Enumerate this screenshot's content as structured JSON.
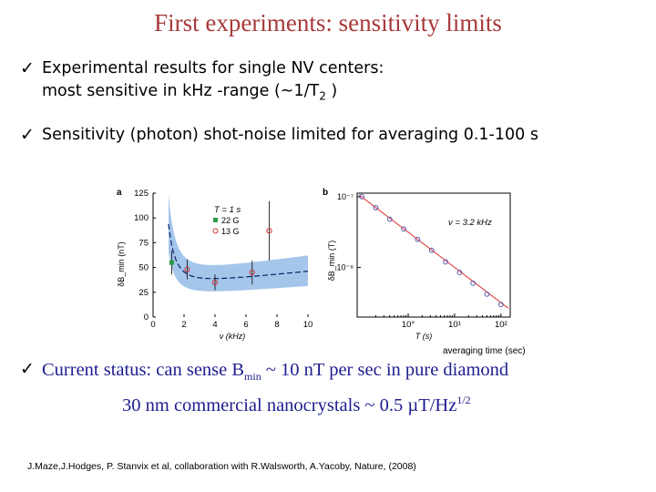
{
  "slide": {
    "title": "First experiments: sensitivity limits",
    "bullets": [
      {
        "check": "✓",
        "line1": "Experimental results for single NV centers:",
        "line2_prefix": "most sensitive in kHz -range (~1/T",
        "line2_sub": "2",
        "line2_suffix": " )"
      },
      {
        "check": "✓",
        "text": "Sensitivity (photon) shot-noise limited for averaging 0.1-100 s"
      }
    ],
    "status": {
      "check": "✓",
      "line1_prefix": "Current status: can sense B",
      "line1_sub": "min",
      "line1_suffix": " ~ 10 nT per sec in pure diamond",
      "line2_prefix": "30 nm commercial nanocrystals ~ 0.5 µT/Hz",
      "line2_sup": "1/2"
    },
    "averaging_label": "averaging time (sec)",
    "reference": "J.Maze,J.Hodges, P. Stanvix et al, collaboration with R.Walsworth, A.Yacoby, Nature, (2008)"
  },
  "chart_data": [
    {
      "type": "scatter",
      "panel": "a",
      "ylabel": "δB_min (nT)",
      "xlabel": "ν (kHz)",
      "xlim": [
        0,
        10
      ],
      "ylim": [
        0,
        125
      ],
      "xticks": [
        "0",
        "2",
        "4",
        "6",
        "8",
        "10"
      ],
      "yticks": [
        "0",
        "25",
        "50",
        "75",
        "100",
        "125"
      ],
      "legend_title": "T = 1 s",
      "series": [
        {
          "name": "22 G",
          "color": "#2e9b46",
          "points": [
            [
              1.2,
              55
            ]
          ]
        },
        {
          "name": "13 G",
          "color": "#cc2f2f",
          "points": [
            [
              2.2,
              48
            ],
            [
              4.0,
              35
            ],
            [
              6.4,
              45
            ],
            [
              7.5,
              87
            ]
          ]
        }
      ],
      "band_color": "#8fb8e6"
    },
    {
      "type": "scatter",
      "panel": "b",
      "ylabel": "δB_min (T)",
      "xlabel": "T (s)",
      "xscale": "log",
      "yscale": "log",
      "xticks": [
        "10°",
        "10¹",
        "10²"
      ],
      "yticks": [
        "10⁻⁷",
        "10⁻⁸"
      ],
      "annotation": "ν = 3.2 kHz",
      "points": [
        [
          0.1,
          1e-07
        ],
        [
          0.2,
          7e-08
        ],
        [
          0.4,
          4.8e-08
        ],
        [
          0.8,
          3.5e-08
        ],
        [
          1.6,
          2.5e-08
        ],
        [
          3.2,
          1.75e-08
        ],
        [
          6.4,
          1.2e-08
        ],
        [
          12.8,
          8.5e-09
        ],
        [
          25,
          6e-09
        ],
        [
          50,
          4.2e-09
        ],
        [
          100,
          3e-09
        ]
      ],
      "marker_color": "#5a5ab0",
      "fit_color": "#e05050"
    }
  ]
}
